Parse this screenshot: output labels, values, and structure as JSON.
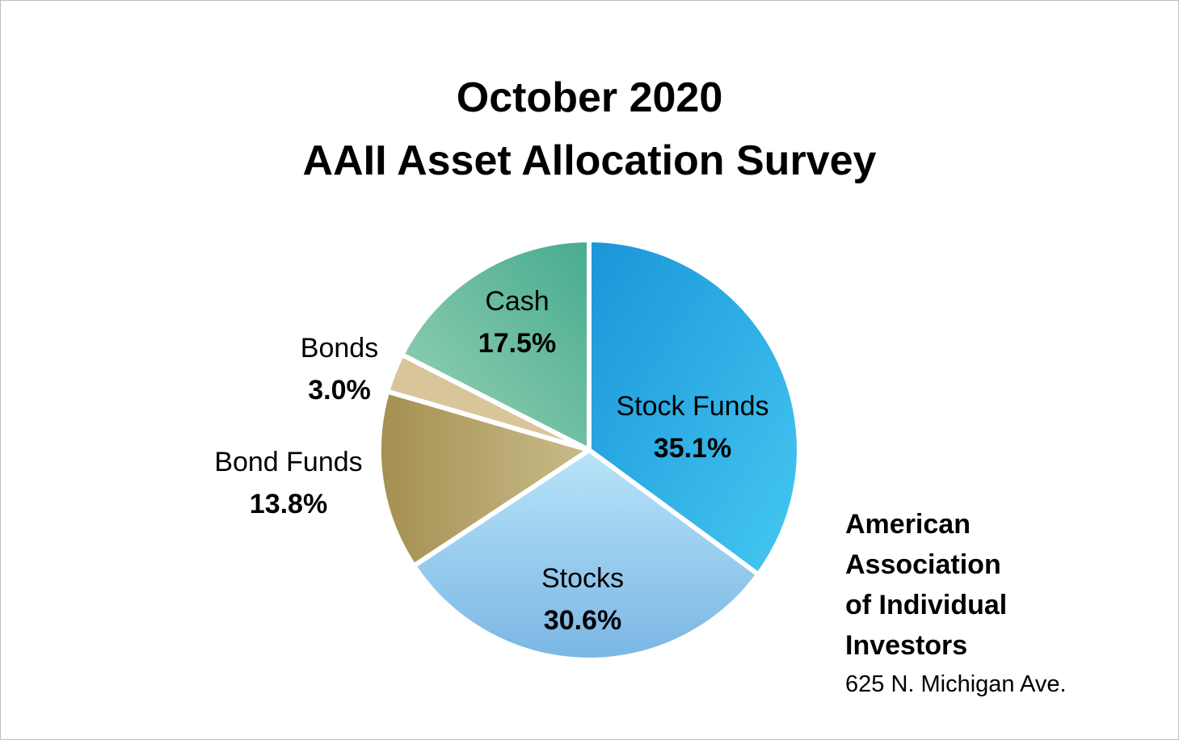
{
  "chart_data": {
    "type": "pie",
    "title": [
      "October 2020",
      "AAII Asset Allocation Survey"
    ],
    "slices": [
      {
        "label": "Stock Funds",
        "value": 35.1,
        "value_label": "35.1%",
        "color_start": "#1a95d8",
        "color_end": "#45c8f2"
      },
      {
        "label": "Stocks",
        "value": 30.6,
        "value_label": "30.6%",
        "color_start": "#b8e4f8",
        "color_end": "#7ab6e4"
      },
      {
        "label": "Bond Funds",
        "value": 13.8,
        "value_label": "13.8%",
        "color_start": "#a48f50",
        "color_end": "#c9bc8a"
      },
      {
        "label": "Bonds",
        "value": 3.0,
        "value_label": "3.0%",
        "color_start": "#d8c69a",
        "color_end": "#d8c69a"
      },
      {
        "label": "Cash",
        "value": 17.5,
        "value_label": "17.5%",
        "color_start": "#47ab90",
        "color_end": "#9ad3b5"
      }
    ],
    "start_angle": "12 o'clock",
    "direction": "clockwise"
  },
  "org": {
    "lines": [
      "American",
      "Association",
      "of Individual",
      "Investors"
    ],
    "address": "625 N. Michigan Ave."
  }
}
